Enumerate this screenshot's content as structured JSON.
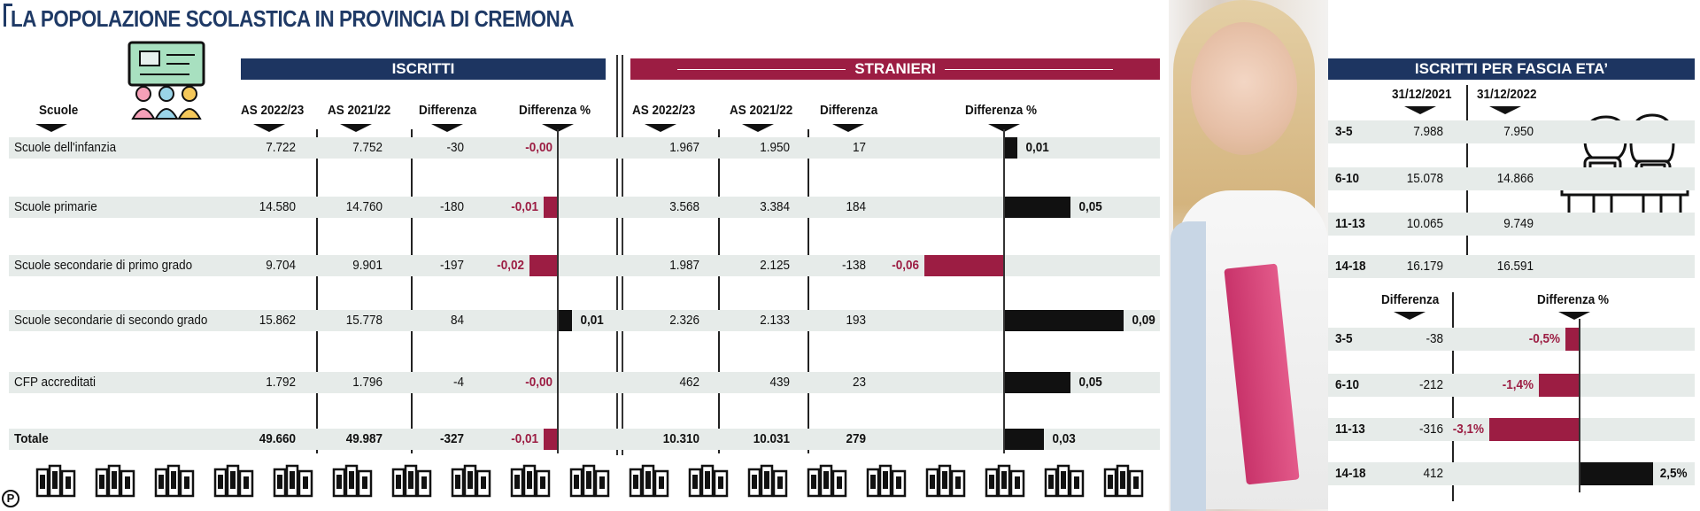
{
  "title": "LA POPOLAZIONE SCOLASTICA IN PROVINCIA DI CREMONA",
  "colors": {
    "navy": "#1d3561",
    "maroon": "#9c1d43",
    "black": "#111111",
    "row_bg": "#e6ebe9"
  },
  "bands": {
    "iscritti": "ISCRITTI",
    "stranieri": "STRANIERI",
    "fascia": "ISCRITTI PER FASCIA ETA’"
  },
  "headers": {
    "scuole": "Scuole",
    "as2223": "AS 2022/23",
    "as2122": "AS 2021/22",
    "diff": "Differenza",
    "diffpct": "Differenza %",
    "d2021": "31/12/2021",
    "d2022": "31/12/2022"
  },
  "icons": {
    "classroom": "classroom-icon",
    "students": "students-desk-icon",
    "books": "books-icon",
    "logo": "publisher-logo"
  },
  "logo_text": "P",
  "chart_data": [
    {
      "type": "table",
      "name": "ISCRITTI",
      "rows": [
        {
          "label": "Scuole dell'infanzia",
          "as2223": "7.722",
          "as2122": "7.752",
          "diff": "-30",
          "pct_label": "-0,00",
          "pct": -0.0
        },
        {
          "label": "Scuole primarie",
          "as2223": "14.580",
          "as2122": "14.760",
          "diff": "-180",
          "pct_label": "-0,01",
          "pct": -0.01
        },
        {
          "label": "Scuole secondarie di primo grado",
          "as2223": "9.704",
          "as2122": "9.901",
          "diff": "-197",
          "pct_label": "-0,02",
          "pct": -0.02
        },
        {
          "label": "Scuole secondarie di secondo grado",
          "as2223": "15.862",
          "as2122": "15.778",
          "diff": "84",
          "pct_label": "0,01",
          "pct": 0.01
        },
        {
          "label": "CFP accreditati",
          "as2223": "1.792",
          "as2122": "1.796",
          "diff": "-4",
          "pct_label": "-0,00",
          "pct": -0.0
        },
        {
          "label": "Totale",
          "as2223": "49.660",
          "as2122": "49.987",
          "diff": "-327",
          "pct_label": "-0,01",
          "pct": -0.01
        }
      ]
    },
    {
      "type": "table",
      "name": "STRANIERI",
      "rows": [
        {
          "as2223": "1.967",
          "as2122": "1.950",
          "diff": "17",
          "pct_label": "0,01",
          "pct": 0.01
        },
        {
          "as2223": "3.568",
          "as2122": "3.384",
          "diff": "184",
          "pct_label": "0,05",
          "pct": 0.05
        },
        {
          "as2223": "1.987",
          "as2122": "2.125",
          "diff": "-138",
          "pct_label": "-0,06",
          "pct": -0.06
        },
        {
          "as2223": "2.326",
          "as2122": "2.133",
          "diff": "193",
          "pct_label": "0,09",
          "pct": 0.09
        },
        {
          "as2223": "462",
          "as2122": "439",
          "diff": "23",
          "pct_label": "0,05",
          "pct": 0.05
        },
        {
          "as2223": "10.310",
          "as2122": "10.031",
          "diff": "279",
          "pct_label": "0,03",
          "pct": 0.03
        }
      ]
    },
    {
      "type": "table",
      "name": "ISCRITTI PER FASCIA ETA’",
      "rows": [
        {
          "label": "3-5",
          "d2021": "7.988",
          "d2022": "7.950"
        },
        {
          "label": "6-10",
          "d2021": "15.078",
          "d2022": "14.866"
        },
        {
          "label": "11-13",
          "d2021": "10.065",
          "d2022": "9.749"
        },
        {
          "label": "14-18",
          "d2021": "16.179",
          "d2022": "16.591"
        }
      ]
    },
    {
      "type": "bar",
      "name": "Differenza per fascia",
      "rows": [
        {
          "label": "3-5",
          "diff": "-38",
          "pct_label": "-0,5%",
          "pct": -0.5
        },
        {
          "label": "6-10",
          "diff": "-212",
          "pct_label": "-1,4%",
          "pct": -1.4
        },
        {
          "label": "11-13",
          "diff": "-316",
          "pct_label": "-3,1%",
          "pct": -3.1
        },
        {
          "label": "14-18",
          "diff": "412",
          "pct_label": "2,5%",
          "pct": 2.5
        }
      ]
    }
  ]
}
